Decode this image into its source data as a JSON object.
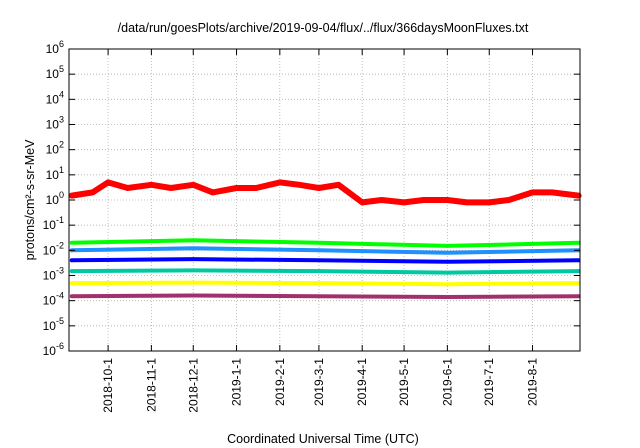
{
  "chart_data": {
    "type": "line",
    "title": "/data/run/goesPlots/archive/2019-09-04/flux/../flux/366daysMoonFluxes.txt",
    "xlabel": "Coordinated Universal Time (UTC)",
    "ylabel": "protons/cm²-s-sr-MeV",
    "yscale": "log",
    "ylim": [
      1e-06,
      1000000.0
    ],
    "xlim": [
      "2018-09-03",
      "2019-09-04"
    ],
    "grid": true,
    "x_ticks": [
      "2018-10-1",
      "2018-11-1",
      "2018-12-1",
      "2019-1-1",
      "2019-2-1",
      "2019-3-1",
      "2019-4-1",
      "2019-5-1",
      "2019-6-1",
      "2019-7-1",
      "2019-8-1"
    ],
    "y_ticks": [
      {
        "base": "10",
        "exp": "-6"
      },
      {
        "base": "10",
        "exp": "-5"
      },
      {
        "base": "10",
        "exp": "-4"
      },
      {
        "base": "10",
        "exp": "-3"
      },
      {
        "base": "10",
        "exp": "-2"
      },
      {
        "base": "10",
        "exp": "-1"
      },
      {
        "base": "10",
        "exp": "0"
      },
      {
        "base": "10",
        "exp": "1"
      },
      {
        "base": "10",
        "exp": "2"
      },
      {
        "base": "10",
        "exp": "3"
      },
      {
        "base": "10",
        "exp": "4"
      },
      {
        "base": "10",
        "exp": "5"
      },
      {
        "base": "10",
        "exp": "6"
      }
    ],
    "series": [
      {
        "color": "#ff0000",
        "x": [
          "2018-09-05",
          "2018-09-20",
          "2018-10-01",
          "2018-10-15",
          "2018-11-01",
          "2018-11-15",
          "2018-12-01",
          "2018-12-15",
          "2019-01-01",
          "2019-01-15",
          "2019-02-01",
          "2019-02-15",
          "2019-03-01",
          "2019-03-15",
          "2019-04-01",
          "2019-04-15",
          "2019-05-01",
          "2019-05-15",
          "2019-06-01",
          "2019-06-15",
          "2019-07-01",
          "2019-07-15",
          "2019-08-01",
          "2019-08-15",
          "2019-09-03"
        ],
        "y": [
          1.5,
          2,
          5,
          3,
          4,
          3,
          4,
          2,
          3,
          3,
          5,
          4,
          3,
          4,
          0.8,
          1,
          0.8,
          1,
          1,
          0.8,
          0.8,
          1,
          2,
          2,
          1.5
        ]
      },
      {
        "color": "#00ff00",
        "x": [
          "2018-09-05",
          "2018-12-01",
          "2019-03-01",
          "2019-06-01",
          "2019-09-03"
        ],
        "y": [
          0.02,
          0.025,
          0.02,
          0.015,
          0.02
        ]
      },
      {
        "color": "#1e90ff",
        "x": [
          "2018-09-05",
          "2018-12-01",
          "2019-03-01",
          "2019-06-01",
          "2019-09-03"
        ],
        "y": [
          0.01,
          0.012,
          0.01,
          0.008,
          0.01
        ]
      },
      {
        "color": "#0000ff",
        "x": [
          "2018-09-05",
          "2018-12-01",
          "2019-03-01",
          "2019-06-01",
          "2019-09-03"
        ],
        "y": [
          0.004,
          0.0045,
          0.004,
          0.0035,
          0.004
        ]
      },
      {
        "color": "#00c8a0",
        "x": [
          "2018-09-05",
          "2018-12-01",
          "2019-03-01",
          "2019-06-01",
          "2019-09-03"
        ],
        "y": [
          0.0015,
          0.0016,
          0.0015,
          0.0013,
          0.0015
        ]
      },
      {
        "color": "#ffff00",
        "x": [
          "2018-09-05",
          "2018-12-01",
          "2019-03-01",
          "2019-06-01",
          "2019-09-03"
        ],
        "y": [
          0.0005,
          0.00052,
          0.0005,
          0.00045,
          0.0005
        ]
      },
      {
        "color": "#a0306e",
        "x": [
          "2018-09-05",
          "2018-12-01",
          "2019-03-01",
          "2019-06-01",
          "2019-09-03"
        ],
        "y": [
          0.00015,
          0.00016,
          0.00015,
          0.00014,
          0.00015
        ]
      }
    ]
  }
}
